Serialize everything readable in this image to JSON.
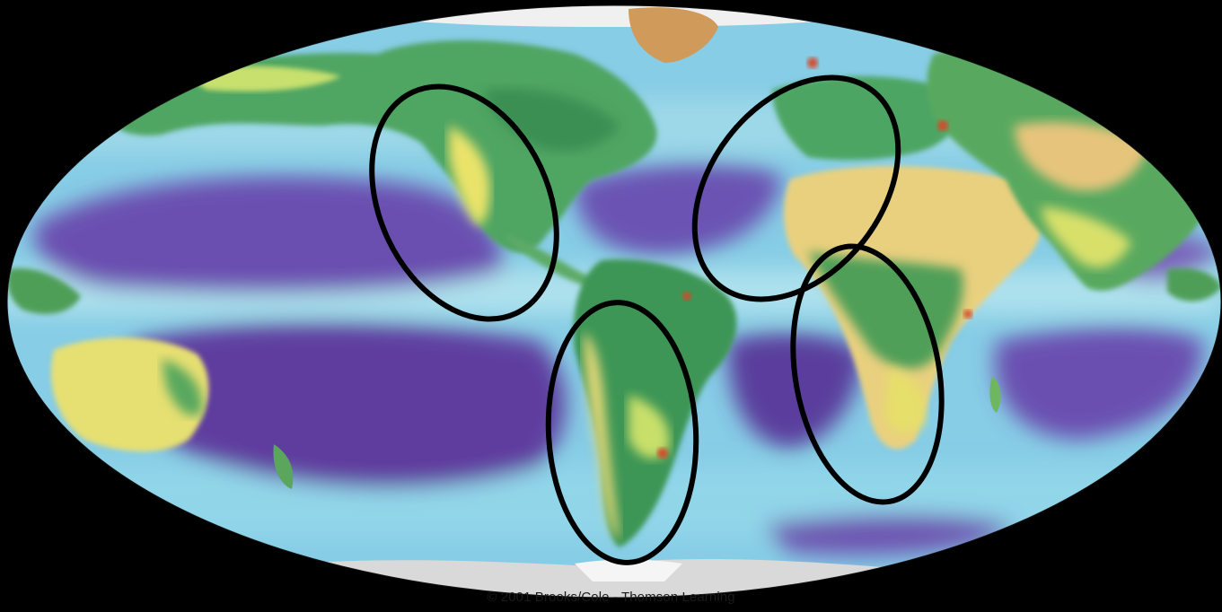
{
  "map": {
    "projection": "mollweide",
    "theme": "global primary productivity (land and ocean)",
    "colors": {
      "background": "#000000",
      "deep_ocean_low": "#5b3f9c",
      "ocean_mid": "#7e86c9",
      "ocean_high": "#8fd7e9",
      "land_low": "#e8d080",
      "land_mid": "#dde36a",
      "land_high": "#3f9a55",
      "land_peak": "#d44a2a",
      "ice": "#f2f2f2",
      "circle_stroke": "#000000"
    },
    "highlighted_regions": [
      {
        "label": "west-coast-north-america"
      },
      {
        "label": "west-coast-south-america"
      },
      {
        "label": "northwest-africa-iberia"
      },
      {
        "label": "southwest-africa"
      }
    ]
  },
  "credit": {
    "text": "© 2001 Brooks/Cole - Thomson Learning"
  }
}
